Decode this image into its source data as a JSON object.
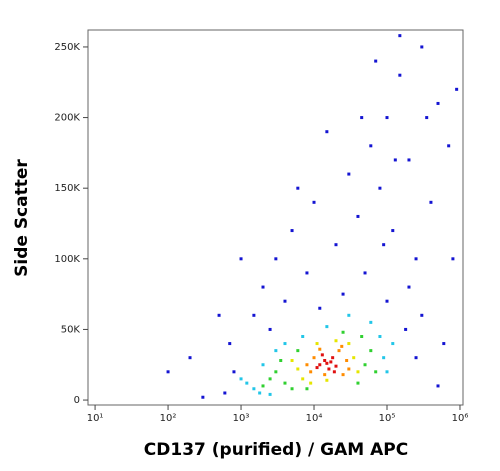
{
  "chart_data": {
    "type": "scatter",
    "x_label": "CD137 (purified) / GAM APC",
    "y_label": "Side Scatter",
    "xscale": "log",
    "xlim": [
      8,
      1100000
    ],
    "ylim": [
      -3500,
      262000
    ],
    "xticks": [
      {
        "value": 10,
        "label": "10¹"
      },
      {
        "value": 100,
        "label": "10²"
      },
      {
        "value": 1000,
        "label": "10³"
      },
      {
        "value": 10000,
        "label": "10⁴"
      },
      {
        "value": 100000,
        "label": "10⁵"
      },
      {
        "value": 1000000,
        "label": "10⁶"
      }
    ],
    "yticks": [
      0,
      {
        "value": 50000,
        "label": "50K"
      },
      {
        "value": 100000,
        "label": "100K"
      },
      {
        "value": 150000,
        "label": "150K"
      },
      {
        "value": 200000,
        "label": "200K"
      },
      {
        "value": 250000,
        "label": "250K"
      }
    ],
    "series": [
      {
        "color": "#1414d2",
        "x": [
          600,
          800,
          700,
          1500,
          2000,
          3000,
          5000,
          4000,
          8000,
          10000,
          20000,
          30000,
          40000,
          50000,
          60000,
          80000,
          100000,
          120000,
          150000,
          200000,
          250000,
          300000,
          400000,
          500000,
          300000,
          150000,
          200000,
          600000,
          700000,
          800000,
          900000,
          100000,
          70000,
          15000,
          6000,
          2500,
          300,
          100,
          200,
          500,
          1000,
          12000,
          25000,
          45000,
          250000,
          500000,
          180000,
          350000,
          130000,
          90000
        ],
        "y": [
          5000,
          20000,
          40000,
          60000,
          80000,
          100000,
          120000,
          70000,
          90000,
          140000,
          110000,
          160000,
          130000,
          90000,
          180000,
          150000,
          200000,
          120000,
          230000,
          170000,
          100000,
          60000,
          140000,
          210000,
          250000,
          258000,
          80000,
          40000,
          180000,
          100000,
          220000,
          70000,
          240000,
          190000,
          150000,
          50000,
          2000,
          20000,
          30000,
          60000,
          100000,
          65000,
          75000,
          200000,
          30000,
          10000,
          50000,
          200000,
          170000,
          110000
        ]
      },
      {
        "color": "#22c6e8",
        "x": [
          1500,
          1200,
          2000,
          1800,
          3000,
          90000,
          80000,
          100000,
          60000,
          1000,
          2500,
          4000,
          30000,
          15000,
          7000,
          120000
        ],
        "y": [
          8000,
          12000,
          25000,
          5000,
          35000,
          30000,
          45000,
          20000,
          55000,
          15000,
          4000,
          40000,
          60000,
          52000,
          45000,
          40000
        ]
      },
      {
        "color": "#30d030",
        "x": [
          3000,
          4000,
          2500,
          5000,
          50000,
          60000,
          45000,
          3500,
          8000,
          25000,
          70000,
          2000,
          6000,
          40000
        ],
        "y": [
          20000,
          12000,
          15000,
          8000,
          25000,
          35000,
          45000,
          28000,
          8000,
          48000,
          20000,
          10000,
          35000,
          12000
        ]
      },
      {
        "color": "#e6e600",
        "x": [
          6000,
          7000,
          35000,
          40000,
          20000,
          9000,
          5000,
          30000,
          15000,
          11000
        ],
        "y": [
          22000,
          15000,
          30000,
          20000,
          42000,
          12000,
          28000,
          40000,
          14000,
          40000
        ]
      },
      {
        "color": "#ff8c00",
        "x": [
          9000,
          22000,
          25000,
          10000,
          28000,
          8000,
          24000,
          14000,
          30000,
          12000
        ],
        "y": [
          20000,
          35000,
          18000,
          30000,
          28000,
          25000,
          38000,
          18000,
          22000,
          36000
        ]
      },
      {
        "color": "#e01010",
        "x": [
          12000,
          14000,
          16000,
          18000,
          15000,
          20000,
          13000,
          17000,
          11000,
          19000
        ],
        "y": [
          25000,
          28000,
          22000,
          30000,
          26000,
          24000,
          32000,
          27000,
          23000,
          20000
        ]
      }
    ]
  }
}
